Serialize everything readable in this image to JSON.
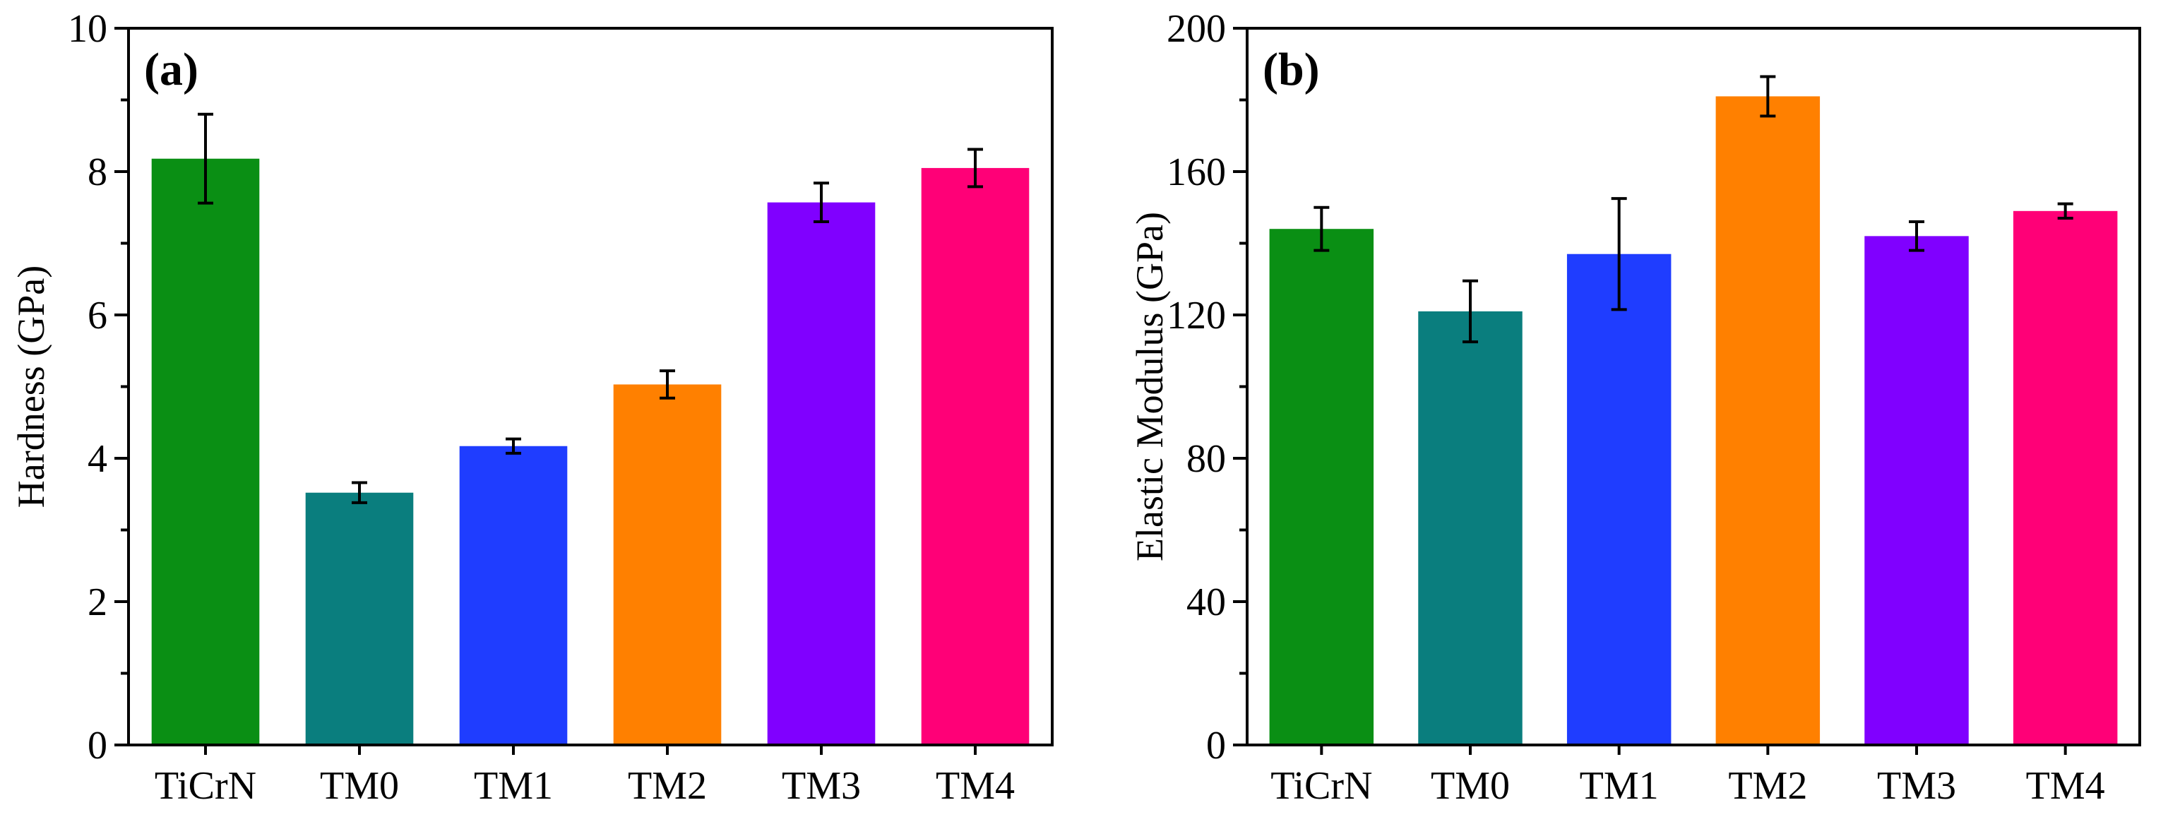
{
  "chart_data": [
    {
      "type": "bar",
      "panel_label": "(a)",
      "title": "",
      "xlabel": "",
      "ylabel": "Hardness (GPa)",
      "ylim": [
        0,
        10
      ],
      "yticks": [
        0,
        2,
        4,
        6,
        8,
        10
      ],
      "yminor": 1,
      "grid": false,
      "categories": [
        "TiCrN",
        "TM0",
        "TM1",
        "TM2",
        "TM3",
        "TM4"
      ],
      "values": [
        8.18,
        3.52,
        4.17,
        5.03,
        7.57,
        8.05
      ],
      "errors": [
        0.62,
        0.14,
        0.1,
        0.19,
        0.27,
        0.26
      ],
      "colors": [
        "#0a8f14",
        "#0a7e7e",
        "#1f3dff",
        "#ff8000",
        "#8000ff",
        "#ff0077"
      ]
    },
    {
      "type": "bar",
      "panel_label": "(b)",
      "title": "",
      "xlabel": "",
      "ylabel": "Elastic Modulus (GPa)",
      "ylim": [
        0,
        200
      ],
      "yticks": [
        0,
        40,
        80,
        120,
        160,
        200
      ],
      "yminor": 20,
      "grid": false,
      "categories": [
        "TiCrN",
        "TM0",
        "TM1",
        "TM2",
        "TM3",
        "TM4"
      ],
      "values": [
        144,
        121,
        137,
        181,
        142,
        149
      ],
      "errors": [
        6,
        8.5,
        15.5,
        5.5,
        4,
        2
      ],
      "colors": [
        "#0a8f14",
        "#0a7e7e",
        "#1f3dff",
        "#ff8000",
        "#8000ff",
        "#ff0077"
      ]
    }
  ]
}
